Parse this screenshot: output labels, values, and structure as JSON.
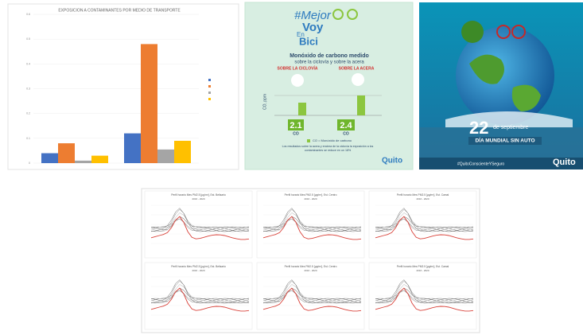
{
  "bar_chart": {
    "title": "EXPOSICION A CONTAMINANTES POR MEDIO DE TRANSPORTE",
    "ylim": [
      0,
      0.6
    ],
    "yticks": [
      0,
      0.1,
      0.2,
      0.3,
      0.4,
      0.5,
      0.6
    ],
    "series": [
      {
        "color": "#4472c4",
        "values": [
          0.04,
          0.12
        ]
      },
      {
        "color": "#ed7d31",
        "values": [
          0.08,
          0.48
        ]
      },
      {
        "color": "#a5a5a5",
        "values": [
          0.01,
          0.055
        ]
      },
      {
        "color": "#ffc000",
        "values": [
          0.03,
          0.09
        ]
      }
    ]
  },
  "infographic": {
    "hashtag_a": "#Mejor",
    "hashtag_b": "Voy",
    "hashtag_c": "En",
    "hashtag_d": "Bici",
    "heading": "Monóxido de carbono medido",
    "subheading": "sobre la ciclovía y sobre la acera",
    "left_label": "SOBRE LA CICLOVÍA",
    "right_label": "SOBRE LA ACERA",
    "axis_label": "CO, ppm",
    "left_value": "2.1",
    "right_value": "2.4",
    "left_unit": "CO",
    "right_unit": "CO",
    "legend": "CO = Monóxido de carbono",
    "footnote": "Los resultados sobre la acera y encima de la ciclovía la exposición a los contaminantes se reduce en un 18%",
    "logo": "Quito"
  },
  "poster": {
    "day": "22",
    "month": "de septiembre",
    "event": "DÍA MUNDIAL SIN AUTO",
    "hashtag": "#QuitoConscienteYSeguro",
    "logo": "Quito"
  },
  "profiles": {
    "charts": [
      {
        "title": "Perfil horario Mes PM2.5 [µg/m³], Est. Belisario",
        "years": "2016 - 2020"
      },
      {
        "title": "Perfil horario Mes PM2.5 [µg/m³], Est. Centro",
        "years": "2016 - 2020"
      },
      {
        "title": "Perfil horario Mes PM2.5 [µg/m³], Est. Camal",
        "years": "2016 - 2020"
      },
      {
        "title": "Perfil horario Mes PM2.5 [µg/m³], Est. Belisario",
        "years": "2016 - 2020"
      },
      {
        "title": "Perfil horario Mes PM2.5 [µg/m³], Est. Centro",
        "years": "2016 - 2020"
      },
      {
        "title": "Perfil horario Mes PM2.5 [µg/m³], Est. Camal",
        "years": "2016 - 2020"
      }
    ]
  }
}
